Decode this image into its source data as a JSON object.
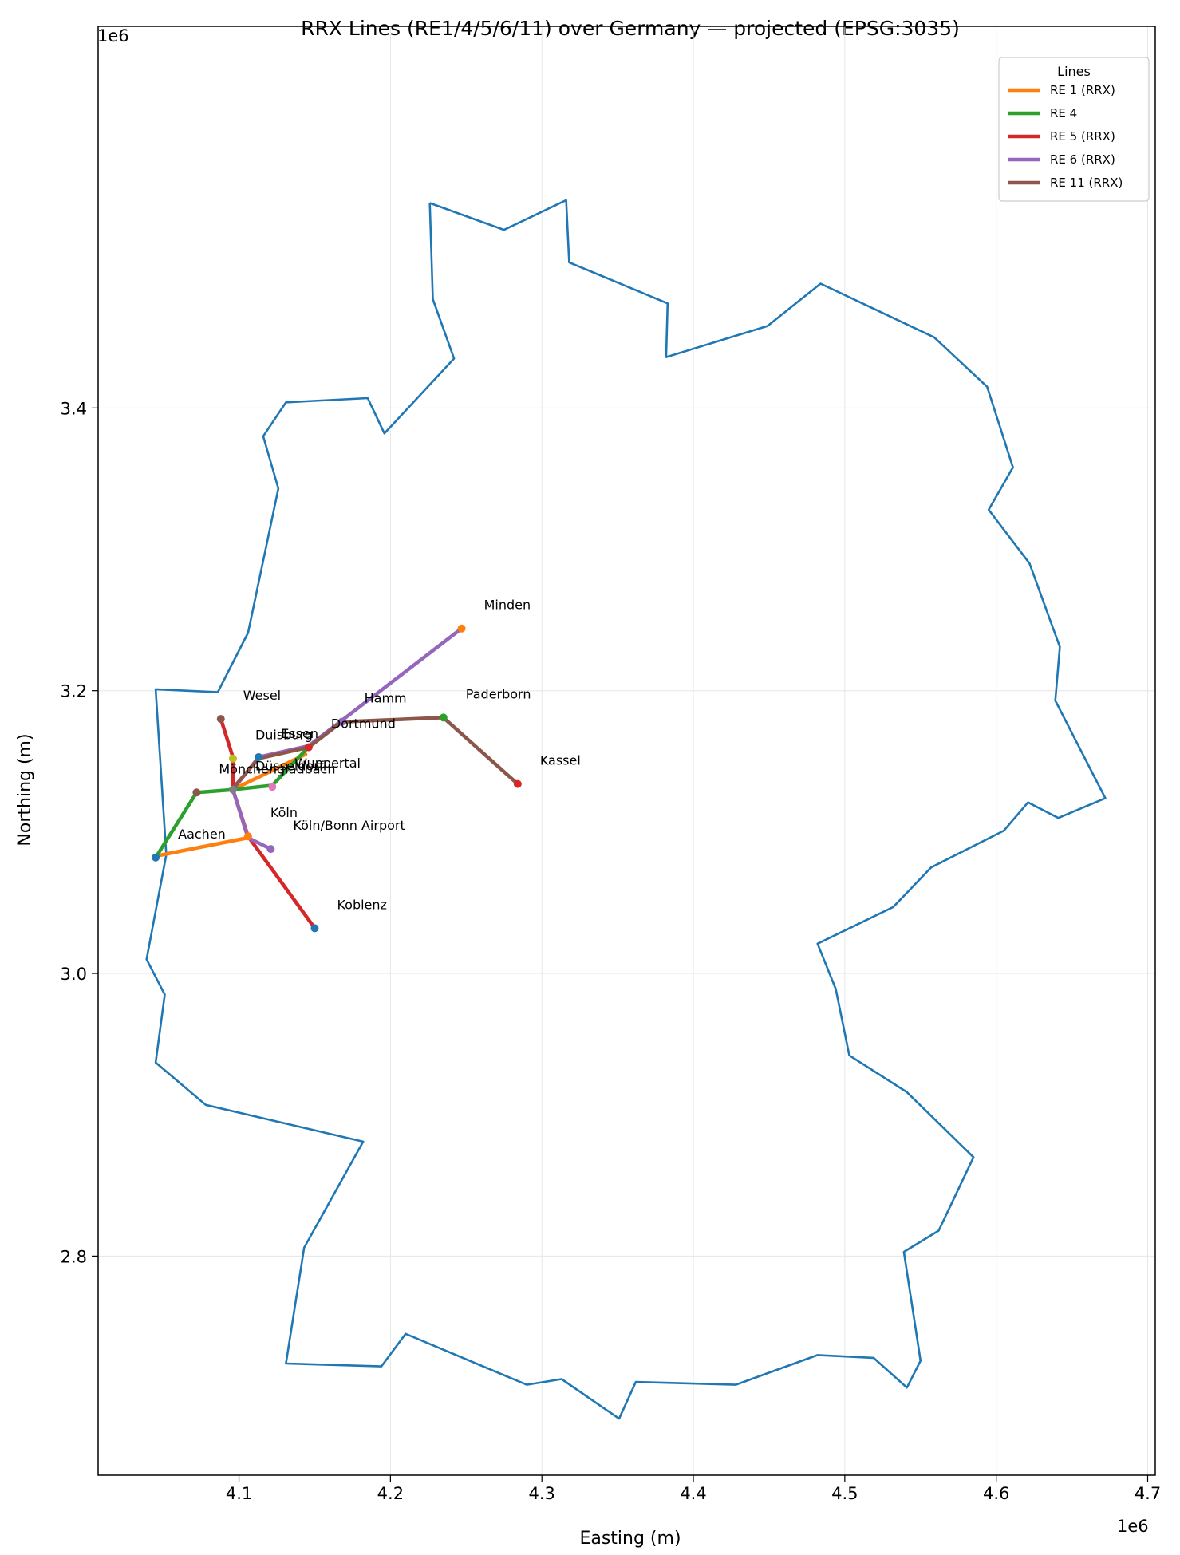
{
  "chart_data": {
    "type": "line",
    "title": "RRX Lines (RE1/4/5/6/11) over Germany — projected (EPSG:3035)",
    "xlabel": "Easting (m)",
    "ylabel": "Northing (m)",
    "x_offset_label": "1e6",
    "y_offset_label": "1e6",
    "xlim": [
      4007000,
      4705000
    ],
    "ylim": [
      2645000,
      3670000
    ],
    "x_ticks": [
      {
        "value": 4100000,
        "label": "4.1"
      },
      {
        "value": 4200000,
        "label": "4.2"
      },
      {
        "value": 4300000,
        "label": "4.3"
      },
      {
        "value": 4400000,
        "label": "4.4"
      },
      {
        "value": 4500000,
        "label": "4.5"
      },
      {
        "value": 4600000,
        "label": "4.6"
      },
      {
        "value": 4700000,
        "label": "4.7"
      }
    ],
    "y_ticks": [
      {
        "value": 2800000,
        "label": "2.8"
      },
      {
        "value": 3000000,
        "label": "3.0"
      },
      {
        "value": 3200000,
        "label": "3.2"
      },
      {
        "value": 3400000,
        "label": "3.4"
      }
    ],
    "grid": true,
    "legend": {
      "title": "Lines",
      "position": "top-right"
    },
    "boundary": {
      "color": "#1f77b4",
      "points": [
        [
          4226000,
          3545000
        ],
        [
          4275000,
          3526000
        ],
        [
          4316000,
          3547000
        ],
        [
          4318000,
          3503000
        ],
        [
          4383000,
          3474000
        ],
        [
          4382000,
          3436000
        ],
        [
          4449000,
          3458000
        ],
        [
          4484000,
          3488000
        ],
        [
          4559000,
          3450000
        ],
        [
          4594000,
          3415000
        ],
        [
          4611000,
          3358000
        ],
        [
          4595000,
          3328000
        ],
        [
          4622000,
          3290000
        ],
        [
          4642000,
          3231000
        ],
        [
          4639000,
          3193000
        ],
        [
          4672000,
          3124000
        ],
        [
          4641000,
          3110000
        ],
        [
          4621000,
          3121000
        ],
        [
          4605000,
          3101000
        ],
        [
          4557000,
          3075000
        ],
        [
          4532000,
          3047000
        ],
        [
          4482000,
          3021000
        ],
        [
          4494000,
          2989000
        ],
        [
          4503000,
          2942000
        ],
        [
          4541000,
          2916000
        ],
        [
          4585000,
          2870000
        ],
        [
          4562000,
          2818000
        ],
        [
          4539000,
          2803000
        ],
        [
          4550000,
          2726000
        ],
        [
          4541000,
          2707000
        ],
        [
          4519000,
          2728000
        ],
        [
          4482000,
          2730000
        ],
        [
          4428000,
          2709000
        ],
        [
          4362000,
          2711000
        ],
        [
          4351000,
          2685000
        ],
        [
          4313000,
          2713000
        ],
        [
          4290000,
          2709000
        ],
        [
          4210000,
          2745000
        ],
        [
          4194000,
          2722000
        ],
        [
          4131000,
          2724000
        ],
        [
          4143000,
          2806000
        ],
        [
          4182000,
          2881000
        ],
        [
          4078000,
          2907000
        ],
        [
          4045000,
          2937000
        ],
        [
          4051000,
          2985000
        ],
        [
          4039000,
          3010000
        ],
        [
          4052000,
          3084000
        ],
        [
          4045000,
          3201000
        ],
        [
          4086000,
          3199000
        ],
        [
          4106000,
          3241000
        ],
        [
          4126000,
          3343000
        ],
        [
          4116000,
          3380000
        ],
        [
          4131000,
          3404000
        ],
        [
          4185000,
          3407000
        ],
        [
          4196000,
          3382000
        ],
        [
          4242000,
          3435000
        ],
        [
          4228000,
          3477000
        ],
        [
          4226000,
          3545000
        ]
      ]
    },
    "series": [
      {
        "name": "RE 1 (RRX)",
        "color": "#ff7f0e",
        "points": [
          [
            4045000,
            3083000
          ],
          [
            4106000,
            3096000
          ],
          [
            4096000,
            3130000
          ],
          [
            4144000,
            3155000
          ]
        ]
      },
      {
        "name": "RE 4",
        "color": "#2ca02c",
        "points": [
          [
            4045000,
            3082000
          ],
          [
            4072000,
            3128000
          ],
          [
            4096000,
            3130000
          ],
          [
            4122000,
            3133000
          ],
          [
            4144000,
            3158000
          ]
        ]
      },
      {
        "name": "RE 5 (RRX)",
        "color": "#d62728",
        "points": [
          [
            4150000,
            3032000
          ],
          [
            4106000,
            3097000
          ],
          [
            4096000,
            3130000
          ],
          [
            4096000,
            3153000
          ],
          [
            4088000,
            3180000
          ]
        ]
      },
      {
        "name": "RE 6 (RRX)",
        "color": "#9467bd",
        "points": [
          [
            4121000,
            3088000
          ],
          [
            4106000,
            3096000
          ],
          [
            4096000,
            3130000
          ],
          [
            4113000,
            3153000
          ],
          [
            4146000,
            3161000
          ],
          [
            4168000,
            3179000
          ],
          [
            4247000,
            3244000
          ]
        ]
      },
      {
        "name": "RE 11 (RRX)",
        "color": "#8c564b",
        "points": [
          [
            4096000,
            3131000
          ],
          [
            4113000,
            3152000
          ],
          [
            4146000,
            3160000
          ],
          [
            4168000,
            3178000
          ],
          [
            4235000,
            3181000
          ],
          [
            4284000,
            3134000
          ]
        ]
      }
    ],
    "stations": [
      {
        "name": "Minden",
        "x": 4247000,
        "y": 3244000,
        "color": "#ff7f0e"
      },
      {
        "name": "Wesel",
        "x": 4088000,
        "y": 3180000,
        "color": "#8c564b"
      },
      {
        "name": "Hamm",
        "x": 4168000,
        "y": 3178000,
        "color": "#9467bd"
      },
      {
        "name": "Paderborn",
        "x": 4235000,
        "y": 3181000,
        "color": "#2ca02c"
      },
      {
        "name": "Dortmund",
        "x": 4146000,
        "y": 3160000,
        "color": "#d62728"
      },
      {
        "name": "Duisburg",
        "x": 4096000,
        "y": 3152000,
        "color": "#bcbd22"
      },
      {
        "name": "Essen",
        "x": 4113000,
        "y": 3153000,
        "color": "#1f77b4"
      },
      {
        "name": "Düsseldorf",
        "x": 4096000,
        "y": 3130000,
        "color": "#7f7f7f"
      },
      {
        "name": "Wuppertal",
        "x": 4122000,
        "y": 3132000,
        "color": "#e377c2"
      },
      {
        "name": "Mönchengladbach",
        "x": 4072000,
        "y": 3128000,
        "color": "#8c564b"
      },
      {
        "name": "Kassel",
        "x": 4284000,
        "y": 3134000,
        "color": "#d62728"
      },
      {
        "name": "Köln",
        "x": 4106000,
        "y": 3097000,
        "color": "#ff7f0e"
      },
      {
        "name": "Köln/Bonn Airport",
        "x": 4121000,
        "y": 3088000,
        "color": "#9467bd"
      },
      {
        "name": "Aachen",
        "x": 4045000,
        "y": 3082000,
        "color": "#1f77b4"
      },
      {
        "name": "Koblenz",
        "x": 4150000,
        "y": 3032000,
        "color": "#1f77b4"
      }
    ]
  }
}
